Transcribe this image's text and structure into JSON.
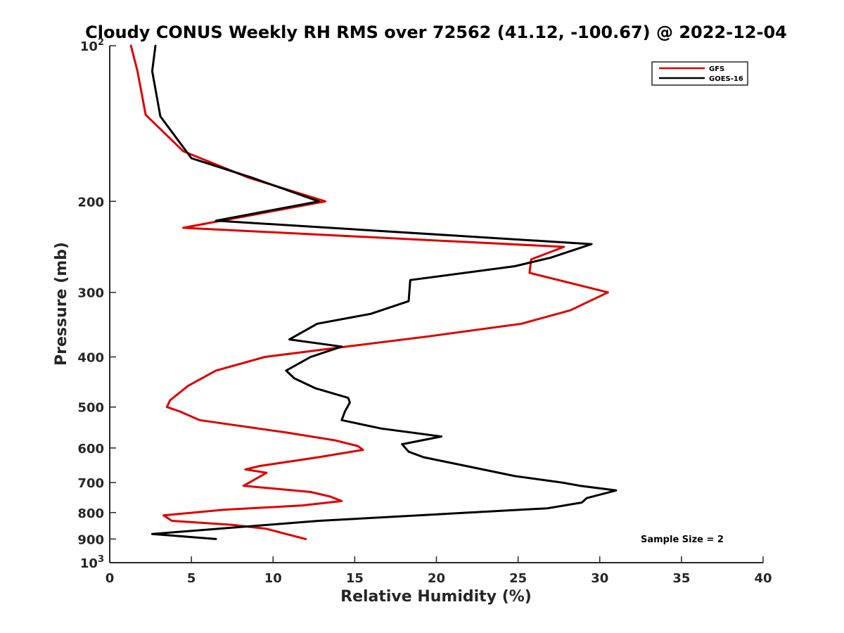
{
  "chart_data": {
    "type": "line",
    "title": "Cloudy CONUS Weekly RH RMS over 72562 (41.12, -100.67) @ 2022-12-04",
    "xlabel": "Relative Humidity (%)",
    "ylabel": "Pressure (mb)",
    "xlim": [
      0,
      40
    ],
    "ylim": [
      100,
      1000
    ],
    "y_scale": "log",
    "y_reversed": true,
    "xticks": [
      0,
      5,
      10,
      15,
      20,
      25,
      30,
      35,
      40
    ],
    "xtick_labels": [
      "0",
      "5",
      "10",
      "15",
      "20",
      "25",
      "30",
      "35",
      "40"
    ],
    "yticks": [
      100,
      200,
      300,
      400,
      500,
      600,
      700,
      800,
      900,
      1000
    ],
    "ytick_labels": [
      {
        "base": "10",
        "exp": "2"
      },
      {
        "base": "200",
        "exp": ""
      },
      {
        "base": "300",
        "exp": ""
      },
      {
        "base": "400",
        "exp": ""
      },
      {
        "base": "500",
        "exp": ""
      },
      {
        "base": "600",
        "exp": ""
      },
      {
        "base": "700",
        "exp": ""
      },
      {
        "base": "800",
        "exp": ""
      },
      {
        "base": "900",
        "exp": ""
      },
      {
        "base": "10",
        "exp": "3"
      }
    ],
    "grid": false,
    "legend_position": "top-right",
    "annotation": "Sample Size = 2",
    "series": [
      {
        "name": "GFS",
        "color": "#dd0000",
        "x": [
          1.3,
          1.7,
          2.2,
          4.5,
          8.5,
          13.2,
          4.5,
          27.8,
          25.8,
          25.7,
          30.5,
          28.2,
          25.2,
          19.5,
          14.5,
          9.5,
          6.5,
          4.8,
          3.7,
          3.5,
          4.3,
          5.5,
          10.8,
          13.8,
          15.2,
          15.5,
          12.8,
          9.2,
          8.3,
          9.6,
          8.2,
          12.3,
          13.5,
          14.2,
          11.8,
          7.0,
          3.3,
          3.8,
          7.5,
          9.6,
          10.5,
          12.0
        ],
        "y": [
          100,
          112,
          136,
          160,
          180,
          200,
          225,
          245,
          259,
          275,
          300,
          325,
          345,
          365,
          382,
          400,
          425,
          455,
          485,
          500,
          510,
          530,
          560,
          580,
          595,
          605,
          625,
          650,
          660,
          670,
          710,
          730,
          745,
          760,
          775,
          790,
          810,
          830,
          845,
          860,
          875,
          900
        ]
      },
      {
        "name": "GOES-16",
        "color": "#000000",
        "x": [
          2.8,
          2.6,
          3.1,
          5.0,
          8.7,
          12.8,
          6.5,
          29.5,
          27.0,
          24.8,
          18.4,
          18.3,
          16.0,
          12.7,
          11.0,
          14.2,
          12.3,
          10.8,
          11.3,
          12.6,
          14.6,
          14.7,
          14.4,
          14.2,
          16.6,
          20.3,
          17.9,
          18.3,
          19.2,
          24.8,
          27.7,
          28.8,
          31.0,
          29.2,
          28.9,
          26.8,
          12.8,
          2.6,
          6.5
        ],
        "y": [
          100,
          112,
          137,
          165,
          180,
          200,
          218,
          242,
          257,
          267,
          284,
          312,
          330,
          345,
          370,
          382,
          400,
          425,
          440,
          460,
          480,
          490,
          510,
          530,
          550,
          570,
          590,
          610,
          625,
          680,
          700,
          710,
          725,
          750,
          765,
          785,
          830,
          880,
          900
        ]
      }
    ]
  }
}
